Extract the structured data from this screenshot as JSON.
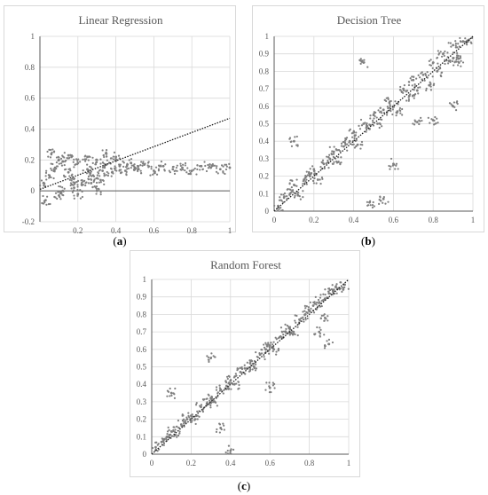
{
  "captions": {
    "a": "a",
    "b": "b",
    "c": "c"
  },
  "colors": {
    "point": "#7f7f7f",
    "trend": "#1a1a1a",
    "grid": "#d9d9d9",
    "axis": "#595959",
    "text": "#595959"
  },
  "chart_data": [
    {
      "type": "scatter",
      "title": "Linear Regression",
      "xlim": [
        0,
        1
      ],
      "ylim": [
        -0.2,
        1
      ],
      "x_ticks": [
        "0.2",
        "0.4",
        "0.6",
        "0.8",
        "1"
      ],
      "x_tick_values": [
        0.2,
        0.4,
        0.6,
        0.8,
        1
      ],
      "y_ticks": [
        "-0.2",
        "0",
        "0.2",
        "0.4",
        "0.6",
        "0.8",
        "1"
      ],
      "y_tick_values": [
        -0.2,
        0,
        0.2,
        0.4,
        0.6,
        0.8,
        1
      ],
      "trendline": {
        "x": [
          0,
          1
        ],
        "y": [
          0.01,
          0.47
        ]
      },
      "points": [
        [
          0.02,
          0.05
        ],
        [
          0.05,
          0.1
        ],
        [
          0.08,
          0.15
        ],
        [
          0.1,
          0.2
        ],
        [
          0.12,
          0.0
        ],
        [
          0.15,
          0.12
        ],
        [
          0.18,
          0.08
        ],
        [
          0.2,
          0.18
        ],
        [
          0.22,
          0.04
        ],
        [
          0.25,
          0.14
        ],
        [
          0.28,
          0.1
        ],
        [
          0.3,
          0.2
        ],
        [
          0.32,
          0.07
        ],
        [
          0.35,
          0.17
        ],
        [
          0.38,
          0.12
        ],
        [
          0.4,
          0.22
        ],
        [
          0.42,
          0.16
        ],
        [
          0.45,
          0.13
        ],
        [
          0.48,
          0.18
        ],
        [
          0.5,
          0.15
        ],
        [
          0.52,
          0.14
        ],
        [
          0.55,
          0.17
        ],
        [
          0.6,
          0.13
        ],
        [
          0.65,
          0.16
        ],
        [
          0.7,
          0.14
        ],
        [
          0.75,
          0.15
        ],
        [
          0.8,
          0.13
        ],
        [
          0.85,
          0.16
        ],
        [
          0.9,
          0.15
        ],
        [
          0.95,
          0.14
        ],
        [
          1.0,
          0.15
        ],
        [
          0.03,
          -0.06
        ],
        [
          0.06,
          0.24
        ],
        [
          0.1,
          -0.03
        ],
        [
          0.15,
          0.23
        ],
        [
          0.2,
          -0.02
        ],
        [
          0.25,
          0.22
        ],
        [
          0.3,
          0.0
        ],
        [
          0.35,
          0.24
        ],
        [
          0.12,
          0.19
        ],
        [
          0.18,
          0.02
        ],
        [
          0.27,
          0.05
        ],
        [
          0.33,
          0.13
        ]
      ]
    },
    {
      "type": "scatter",
      "title": "Decision Tree",
      "xlim": [
        0,
        1
      ],
      "ylim": [
        0,
        1
      ],
      "x_ticks": [
        "0",
        "0.2",
        "0.4",
        "0.6",
        "0.8",
        "1"
      ],
      "x_tick_values": [
        0,
        0.2,
        0.4,
        0.6,
        0.8,
        1
      ],
      "y_ticks": [
        "0",
        "0.1",
        "0.2",
        "0.3",
        "0.4",
        "0.5",
        "0.6",
        "0.7",
        "0.8",
        "0.9",
        "1"
      ],
      "y_tick_values": [
        0,
        0.1,
        0.2,
        0.3,
        0.4,
        0.5,
        0.6,
        0.7,
        0.8,
        0.9,
        1
      ],
      "trendline": {
        "x": [
          0,
          1
        ],
        "y": [
          0,
          1
        ]
      },
      "points": [
        [
          0.02,
          0.03
        ],
        [
          0.05,
          0.08
        ],
        [
          0.08,
          0.1
        ],
        [
          0.1,
          0.15
        ],
        [
          0.12,
          0.09
        ],
        [
          0.15,
          0.18
        ],
        [
          0.18,
          0.2
        ],
        [
          0.2,
          0.24
        ],
        [
          0.22,
          0.18
        ],
        [
          0.25,
          0.27
        ],
        [
          0.28,
          0.3
        ],
        [
          0.3,
          0.34
        ],
        [
          0.32,
          0.28
        ],
        [
          0.35,
          0.37
        ],
        [
          0.38,
          0.4
        ],
        [
          0.4,
          0.45
        ],
        [
          0.42,
          0.38
        ],
        [
          0.45,
          0.5
        ],
        [
          0.48,
          0.47
        ],
        [
          0.5,
          0.55
        ],
        [
          0.52,
          0.5
        ],
        [
          0.55,
          0.58
        ],
        [
          0.58,
          0.62
        ],
        [
          0.6,
          0.6
        ],
        [
          0.62,
          0.57
        ],
        [
          0.65,
          0.7
        ],
        [
          0.68,
          0.66
        ],
        [
          0.7,
          0.75
        ],
        [
          0.72,
          0.69
        ],
        [
          0.75,
          0.78
        ],
        [
          0.78,
          0.72
        ],
        [
          0.8,
          0.85
        ],
        [
          0.82,
          0.8
        ],
        [
          0.85,
          0.9
        ],
        [
          0.88,
          0.86
        ],
        [
          0.9,
          0.95
        ],
        [
          0.92,
          0.88
        ],
        [
          0.95,
          0.97
        ],
        [
          0.98,
          0.98
        ],
        [
          0.1,
          0.4
        ],
        [
          0.45,
          0.85
        ],
        [
          0.48,
          0.05
        ],
        [
          0.55,
          0.07
        ],
        [
          0.6,
          0.27
        ],
        [
          0.72,
          0.51
        ],
        [
          0.8,
          0.52
        ],
        [
          0.9,
          0.6
        ],
        [
          0.93,
          0.85
        ]
      ]
    },
    {
      "type": "scatter",
      "title": "Random Forest",
      "xlim": [
        0,
        1
      ],
      "ylim": [
        0,
        1
      ],
      "x_ticks": [
        "0",
        "0.2",
        "0.4",
        "0.6",
        "0.8",
        "1"
      ],
      "x_tick_values": [
        0,
        0.2,
        0.4,
        0.6,
        0.8,
        1
      ],
      "y_ticks": [
        "0",
        "0.1",
        "0.2",
        "0.3",
        "0.4",
        "0.5",
        "0.6",
        "0.7",
        "0.8",
        "0.9",
        "1"
      ],
      "y_tick_values": [
        0,
        0.1,
        0.2,
        0.3,
        0.4,
        0.5,
        0.6,
        0.7,
        0.8,
        0.9,
        1
      ],
      "trendline": {
        "x": [
          0,
          1
        ],
        "y": [
          0,
          1
        ]
      },
      "points": [
        [
          0.02,
          0.04
        ],
        [
          0.05,
          0.07
        ],
        [
          0.08,
          0.1
        ],
        [
          0.1,
          0.13
        ],
        [
          0.12,
          0.11
        ],
        [
          0.15,
          0.17
        ],
        [
          0.18,
          0.2
        ],
        [
          0.2,
          0.22
        ],
        [
          0.22,
          0.2
        ],
        [
          0.25,
          0.27
        ],
        [
          0.28,
          0.29
        ],
        [
          0.3,
          0.32
        ],
        [
          0.32,
          0.3
        ],
        [
          0.35,
          0.37
        ],
        [
          0.38,
          0.39
        ],
        [
          0.4,
          0.42
        ],
        [
          0.42,
          0.4
        ],
        [
          0.45,
          0.47
        ],
        [
          0.48,
          0.49
        ],
        [
          0.5,
          0.52
        ],
        [
          0.52,
          0.5
        ],
        [
          0.55,
          0.57
        ],
        [
          0.58,
          0.6
        ],
        [
          0.6,
          0.62
        ],
        [
          0.62,
          0.6
        ],
        [
          0.65,
          0.67
        ],
        [
          0.68,
          0.7
        ],
        [
          0.7,
          0.72
        ],
        [
          0.72,
          0.7
        ],
        [
          0.75,
          0.77
        ],
        [
          0.78,
          0.8
        ],
        [
          0.8,
          0.82
        ],
        [
          0.82,
          0.85
        ],
        [
          0.85,
          0.87
        ],
        [
          0.88,
          0.89
        ],
        [
          0.9,
          0.92
        ],
        [
          0.92,
          0.94
        ],
        [
          0.95,
          0.95
        ],
        [
          0.98,
          0.97
        ],
        [
          0.1,
          0.35
        ],
        [
          0.3,
          0.55
        ],
        [
          0.35,
          0.15
        ],
        [
          0.4,
          0.02
        ],
        [
          0.6,
          0.38
        ],
        [
          0.85,
          0.7
        ],
        [
          0.9,
          0.63
        ],
        [
          0.88,
          0.78
        ]
      ]
    }
  ]
}
